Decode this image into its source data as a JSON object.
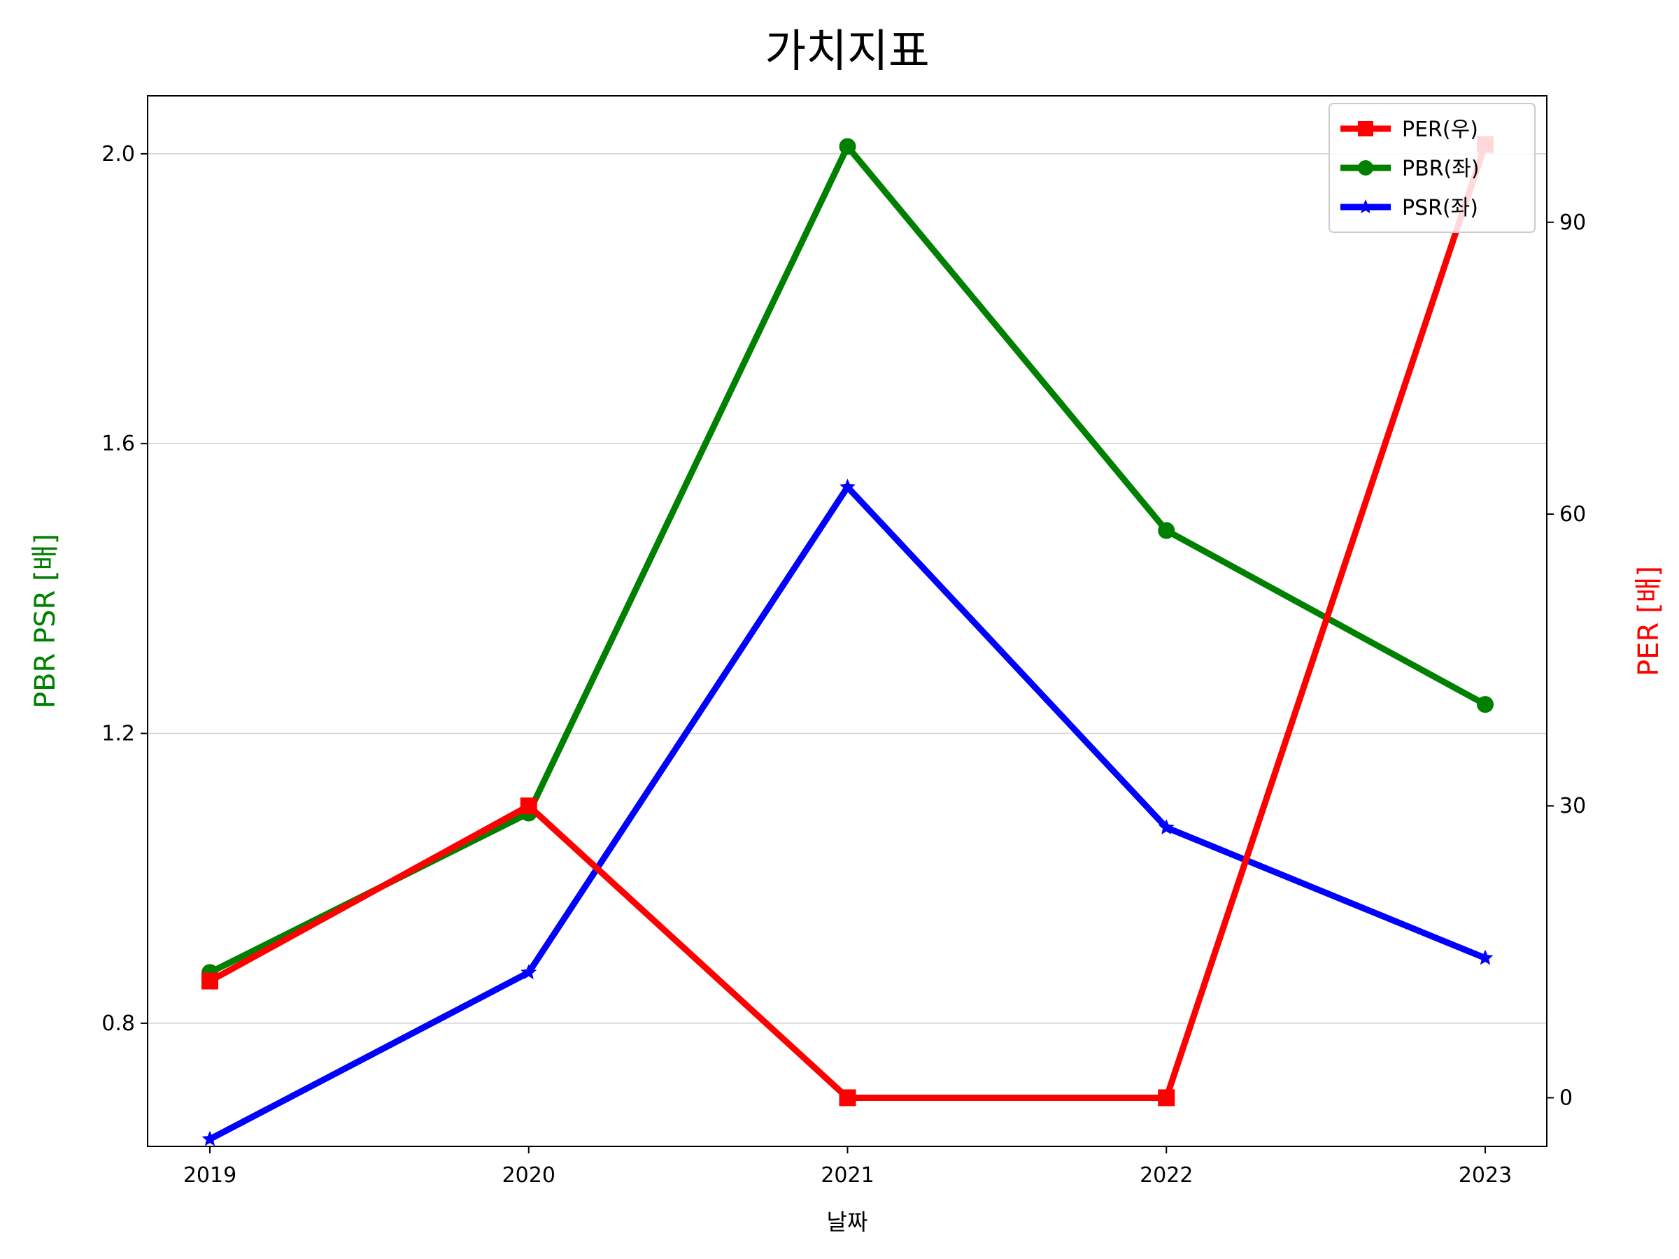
{
  "chart_data": {
    "type": "line",
    "title": "가치지표",
    "xlabel": "날짜",
    "ylabel_left": "PBR PSR [배]",
    "ylabel_right": "PER [배]",
    "categories": [
      "2019",
      "2020",
      "2021",
      "2022",
      "2023"
    ],
    "ylim_left": [
      0.63,
      2.08
    ],
    "ylim_right": [
      -5,
      103
    ],
    "yticks_left": [
      0.8,
      1.2,
      1.6,
      2.0
    ],
    "yticks_left_labels": [
      "0.8",
      "1.2",
      "1.6",
      "2.0"
    ],
    "yticks_right": [
      0,
      30,
      60,
      90
    ],
    "yticks_right_labels": [
      "0",
      "30",
      "60",
      "90"
    ],
    "grid": "horizontal, left axis",
    "legend_position": "top-right",
    "series": [
      {
        "name": "PER(우)",
        "axis": "right",
        "color": "#ff0000",
        "marker": "square",
        "values": [
          12,
          30,
          0,
          0,
          98
        ]
      },
      {
        "name": "PBR(좌)",
        "axis": "left",
        "color": "#008000",
        "marker": "circle",
        "values": [
          0.87,
          1.09,
          2.01,
          1.48,
          1.24
        ]
      },
      {
        "name": "PSR(좌)",
        "axis": "left",
        "color": "#0000ff",
        "marker": "star",
        "values": [
          0.64,
          0.87,
          1.54,
          1.07,
          0.89
        ]
      }
    ]
  }
}
